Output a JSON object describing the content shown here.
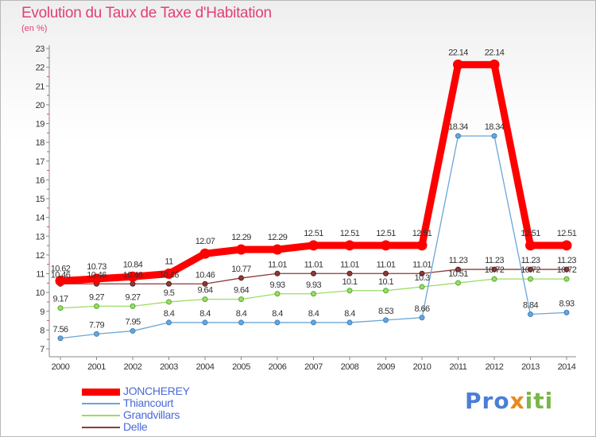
{
  "header": {
    "title": "Evolution du Taux de Taxe d'Habitation",
    "subtitle": "(en %)"
  },
  "brand": {
    "part1": "Pro",
    "part2": "x",
    "part3": "iti"
  },
  "chart_data": {
    "type": "line",
    "title": "Evolution du Taux de Taxe d'Habitation",
    "subtitle": "(en %)",
    "xlabel": "",
    "ylabel": "(en %)",
    "x": [
      "2000",
      "2001",
      "2002",
      "2003",
      "2004",
      "2005",
      "2006",
      "2007",
      "2008",
      "2009",
      "2010",
      "2011",
      "2012",
      "2013",
      "2014"
    ],
    "ylim": [
      7,
      23
    ],
    "yticks": [
      "7",
      "8",
      "9",
      "10",
      "11",
      "12",
      "13",
      "14",
      "15",
      "16",
      "17",
      "18",
      "19",
      "20",
      "21",
      "22",
      "23"
    ],
    "grid": false,
    "legend_position": "bottom-left",
    "series": [
      {
        "name": "JONCHEREY",
        "color": "#ff0000",
        "values": [
          10.62,
          10.73,
          10.84,
          11,
          12.07,
          12.29,
          12.29,
          12.51,
          12.51,
          12.51,
          12.51,
          22.14,
          22.14,
          12.51,
          12.51
        ],
        "labels": [
          "10.62",
          "10.73",
          "10.84",
          "11",
          "12.07",
          "12.29",
          "12.29",
          "12.51",
          "12.51",
          "12.51",
          "12.51",
          "22.14",
          "22.14",
          "12.51",
          "12.51"
        ]
      },
      {
        "name": "Thiancourt",
        "color": "#6aa6d8",
        "values": [
          7.56,
          7.79,
          7.95,
          8.4,
          8.4,
          8.4,
          8.4,
          8.4,
          8.4,
          8.53,
          8.66,
          18.34,
          18.34,
          8.84,
          8.93
        ],
        "labels": [
          "7.56",
          "7.79",
          "7.95",
          "8.4",
          "8.4",
          "8.4",
          "8.4",
          "8.4",
          "8.4",
          "8.53",
          "8.66",
          "18.34",
          "18.34",
          "8.84",
          "8.93"
        ]
      },
      {
        "name": "Grandvillars",
        "color": "#99dd66",
        "values": [
          9.17,
          9.27,
          9.27,
          9.5,
          9.64,
          9.64,
          9.93,
          9.93,
          10.1,
          10.1,
          10.3,
          10.51,
          10.72,
          10.72,
          10.72
        ],
        "labels": [
          "9.17",
          "9.27",
          "9.27",
          "9.5",
          "9.64",
          "9.64",
          "9.93",
          "9.93",
          "10.1",
          "10.1",
          "10.3",
          "10.51",
          "10.72",
          "10.72",
          "10.72"
        ]
      },
      {
        "name": "Delle",
        "color": "#8b3a3a",
        "values": [
          10.46,
          10.46,
          10.46,
          10.46,
          10.46,
          10.77,
          11.01,
          11.01,
          11.01,
          11.01,
          11.01,
          11.23,
          11.23,
          11.23,
          11.23
        ],
        "labels": [
          "10.46",
          "10.46",
          "10.46",
          "10.46",
          "10.46",
          "10.77",
          "11.01",
          "11.01",
          "11.01",
          "11.01",
          "11.01",
          "11.23",
          "11.23",
          "11.23",
          "11.23"
        ]
      }
    ]
  }
}
